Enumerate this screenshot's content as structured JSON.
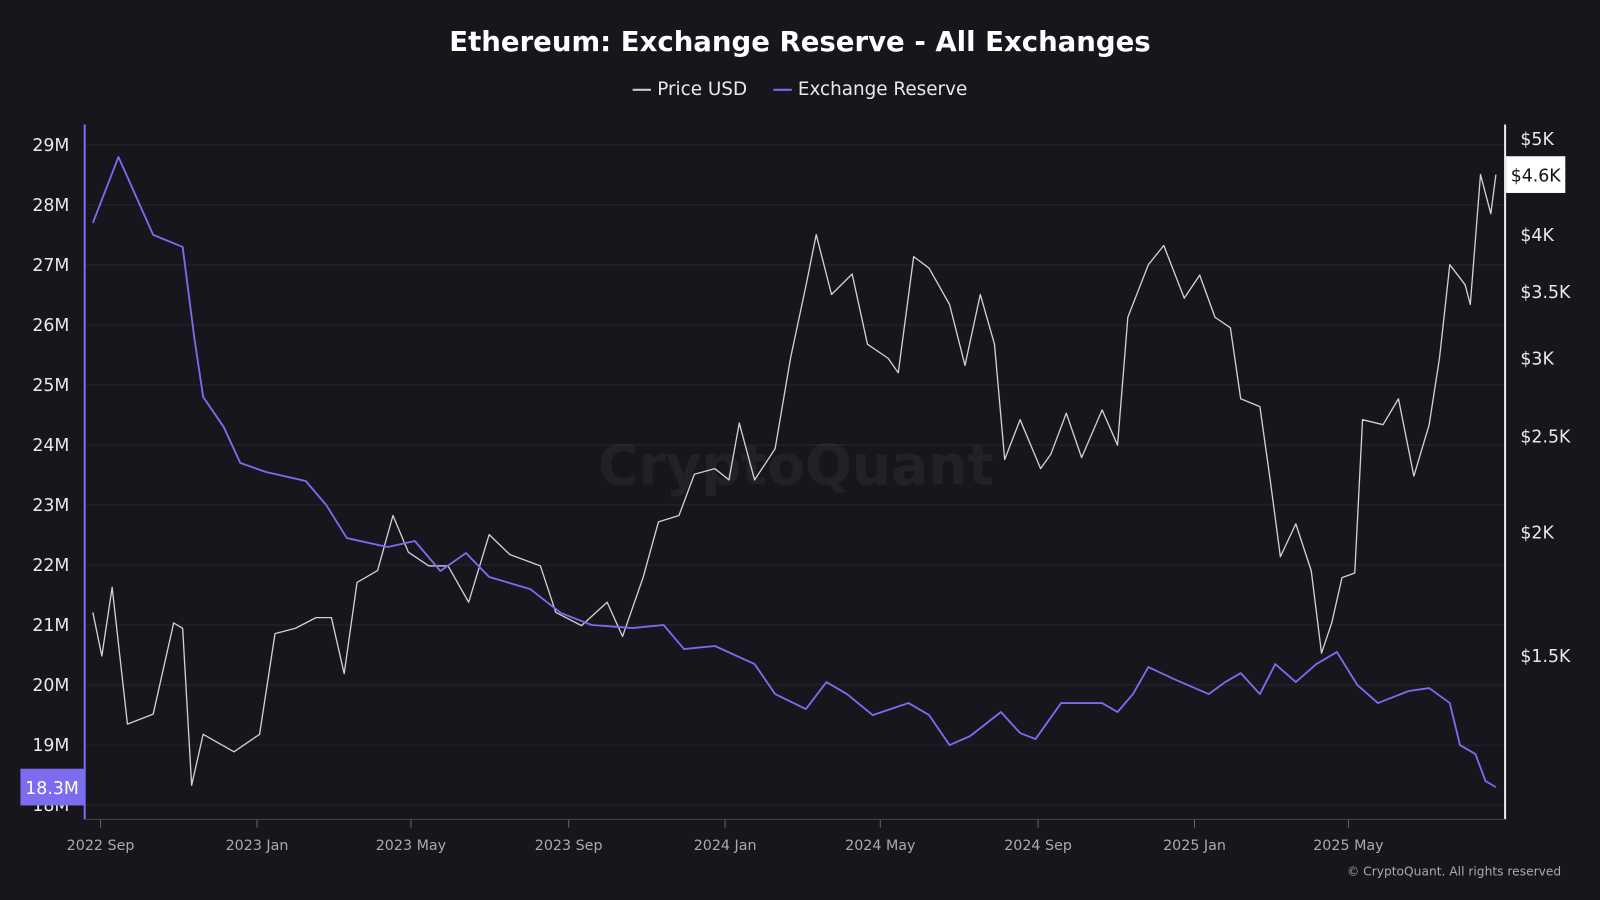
{
  "title": "Ethereum: Exchange Reserve - All Exchanges",
  "legend": [
    {
      "label": "Price USD",
      "color": "#d0d0d6"
    },
    {
      "label": "Exchange Reserve",
      "color": "#7b6cf0"
    }
  ],
  "watermark": "CryptoQuant",
  "copyright": "© CryptoQuant. All rights reserved",
  "chart_data": {
    "type": "line",
    "title": "Ethereum: Exchange Reserve - All Exchanges",
    "x_ticks": [
      "2022 Sep",
      "2023 Jan",
      "2023 May",
      "2023 Sep",
      "2024 Jan",
      "2024 May",
      "2024 Sep",
      "2025 Jan",
      "2025 May"
    ],
    "x_tick_dates": [
      "2022-09-01",
      "2023-01-01",
      "2023-05-01",
      "2023-09-01",
      "2024-01-01",
      "2024-05-01",
      "2024-09-01",
      "2025-01-01",
      "2025-05-01"
    ],
    "xlim": [
      "2022-08-26",
      "2025-08-24"
    ],
    "left_axis": {
      "ticks": [
        "29M",
        "28M",
        "27M",
        "26M",
        "25M",
        "24M",
        "23M",
        "22M",
        "21M",
        "20M",
        "19M",
        "18M"
      ],
      "tick_values": [
        29,
        28,
        27,
        26,
        25,
        24,
        23,
        22,
        21,
        20,
        19,
        18
      ],
      "ylim": [
        18,
        29
      ],
      "unit": "M",
      "current_label": "18.3M",
      "current_value": 18.3
    },
    "right_axis": {
      "scale": "log",
      "ticks": [
        "$5K",
        "$4K",
        "$3.5K",
        "$3K",
        "$2.5K",
        "$2K",
        "$1.5K"
      ],
      "tick_values": [
        5000,
        4000,
        3500,
        3000,
        2500,
        2000,
        1500
      ],
      "current_label": "$4.6K",
      "current_value": 4600
    },
    "grid": true,
    "legend_position": "top",
    "series": [
      {
        "name": "Price USD",
        "axis": "right",
        "color": "#d0d0d6",
        "points": [
          [
            "2022-08-26",
            1660
          ],
          [
            "2022-09-02",
            1500
          ],
          [
            "2022-09-10",
            1760
          ],
          [
            "2022-09-22",
            1280
          ],
          [
            "2022-10-12",
            1310
          ],
          [
            "2022-10-28",
            1620
          ],
          [
            "2022-11-04",
            1600
          ],
          [
            "2022-11-11",
            1110
          ],
          [
            "2022-11-20",
            1250
          ],
          [
            "2022-12-14",
            1200
          ],
          [
            "2023-01-03",
            1250
          ],
          [
            "2023-01-15",
            1580
          ],
          [
            "2023-01-31",
            1600
          ],
          [
            "2023-02-16",
            1640
          ],
          [
            "2023-02-28",
            1640
          ],
          [
            "2023-03-10",
            1440
          ],
          [
            "2023-03-20",
            1780
          ],
          [
            "2023-04-05",
            1830
          ],
          [
            "2023-04-17",
            2080
          ],
          [
            "2023-04-29",
            1910
          ],
          [
            "2023-05-15",
            1850
          ],
          [
            "2023-05-30",
            1850
          ],
          [
            "2023-06-15",
            1700
          ],
          [
            "2023-07-01",
            1990
          ],
          [
            "2023-07-17",
            1900
          ],
          [
            "2023-08-10",
            1850
          ],
          [
            "2023-08-22",
            1660
          ],
          [
            "2023-09-11",
            1610
          ],
          [
            "2023-10-01",
            1700
          ],
          [
            "2023-10-13",
            1570
          ],
          [
            "2023-10-29",
            1800
          ],
          [
            "2023-11-10",
            2050
          ],
          [
            "2023-11-26",
            2080
          ],
          [
            "2023-12-08",
            2290
          ],
          [
            "2023-12-24",
            2320
          ],
          [
            "2024-01-04",
            2260
          ],
          [
            "2024-01-12",
            2580
          ],
          [
            "2024-01-24",
            2260
          ],
          [
            "2024-02-09",
            2430
          ],
          [
            "2024-02-21",
            3000
          ],
          [
            "2024-03-04",
            3550
          ],
          [
            "2024-03-12",
            4000
          ],
          [
            "2024-03-24",
            3480
          ],
          [
            "2024-04-09",
            3650
          ],
          [
            "2024-04-21",
            3100
          ],
          [
            "2024-05-07",
            3000
          ],
          [
            "2024-05-15",
            2900
          ],
          [
            "2024-05-27",
            3800
          ],
          [
            "2024-06-08",
            3700
          ],
          [
            "2024-06-24",
            3400
          ],
          [
            "2024-07-06",
            2950
          ],
          [
            "2024-07-18",
            3480
          ],
          [
            "2024-07-29",
            3100
          ],
          [
            "2024-08-06",
            2370
          ],
          [
            "2024-08-18",
            2600
          ],
          [
            "2024-09-03",
            2320
          ],
          [
            "2024-09-11",
            2400
          ],
          [
            "2024-09-23",
            2640
          ],
          [
            "2024-10-05",
            2380
          ],
          [
            "2024-10-21",
            2660
          ],
          [
            "2024-11-02",
            2450
          ],
          [
            "2024-11-10",
            3300
          ],
          [
            "2024-11-26",
            3730
          ],
          [
            "2024-12-08",
            3900
          ],
          [
            "2024-12-24",
            3450
          ],
          [
            "2025-01-05",
            3640
          ],
          [
            "2025-01-17",
            3300
          ],
          [
            "2025-01-29",
            3220
          ],
          [
            "2025-02-06",
            2730
          ],
          [
            "2025-02-21",
            2680
          ],
          [
            "2025-03-01",
            2260
          ],
          [
            "2025-03-09",
            1890
          ],
          [
            "2025-03-21",
            2040
          ],
          [
            "2025-04-02",
            1830
          ],
          [
            "2025-04-10",
            1510
          ],
          [
            "2025-04-18",
            1620
          ],
          [
            "2025-04-26",
            1800
          ],
          [
            "2025-05-06",
            1820
          ],
          [
            "2025-05-12",
            2600
          ],
          [
            "2025-05-28",
            2570
          ],
          [
            "2025-06-09",
            2730
          ],
          [
            "2025-06-21",
            2280
          ],
          [
            "2025-07-03",
            2570
          ],
          [
            "2025-07-11",
            3000
          ],
          [
            "2025-07-19",
            3730
          ],
          [
            "2025-07-31",
            3560
          ],
          [
            "2025-08-04",
            3400
          ],
          [
            "2025-08-12",
            4600
          ],
          [
            "2025-08-20",
            4200
          ],
          [
            "2025-08-24",
            4600
          ]
        ]
      },
      {
        "name": "Exchange Reserve",
        "axis": "left",
        "color": "#7b6cf0",
        "points": [
          [
            "2022-08-26",
            27.7
          ],
          [
            "2022-09-15",
            28.8
          ],
          [
            "2022-10-12",
            27.5
          ],
          [
            "2022-11-04",
            27.3
          ],
          [
            "2022-11-13",
            25.8
          ],
          [
            "2022-11-20",
            24.8
          ],
          [
            "2022-12-06",
            24.3
          ],
          [
            "2022-12-19",
            23.7
          ],
          [
            "2023-01-08",
            23.55
          ],
          [
            "2023-02-08",
            23.4
          ],
          [
            "2023-02-24",
            23.0
          ],
          [
            "2023-03-12",
            22.45
          ],
          [
            "2023-04-13",
            22.3
          ],
          [
            "2023-05-04",
            22.4
          ],
          [
            "2023-05-24",
            21.9
          ],
          [
            "2023-06-13",
            22.2
          ],
          [
            "2023-07-01",
            21.8
          ],
          [
            "2023-08-02",
            21.6
          ],
          [
            "2023-08-26",
            21.2
          ],
          [
            "2023-09-19",
            21.0
          ],
          [
            "2023-10-21",
            20.95
          ],
          [
            "2023-11-14",
            21.0
          ],
          [
            "2023-11-30",
            20.6
          ],
          [
            "2023-12-24",
            20.65
          ],
          [
            "2024-01-24",
            20.35
          ],
          [
            "2024-02-09",
            19.85
          ],
          [
            "2024-03-04",
            19.6
          ],
          [
            "2024-03-20",
            20.05
          ],
          [
            "2024-04-05",
            19.85
          ],
          [
            "2024-04-25",
            19.5
          ],
          [
            "2024-05-23",
            19.7
          ],
          [
            "2024-06-08",
            19.5
          ],
          [
            "2024-06-24",
            19.0
          ],
          [
            "2024-07-10",
            19.15
          ],
          [
            "2024-08-03",
            19.55
          ],
          [
            "2024-08-18",
            19.2
          ],
          [
            "2024-08-30",
            19.1
          ],
          [
            "2024-09-19",
            19.7
          ],
          [
            "2024-10-21",
            19.7
          ],
          [
            "2024-11-02",
            19.55
          ],
          [
            "2024-11-14",
            19.85
          ],
          [
            "2024-11-26",
            20.3
          ],
          [
            "2024-12-16",
            20.1
          ],
          [
            "2025-01-12",
            19.85
          ],
          [
            "2025-01-25",
            20.05
          ],
          [
            "2025-02-06",
            20.2
          ],
          [
            "2025-02-21",
            19.85
          ],
          [
            "2025-03-05",
            20.35
          ],
          [
            "2025-03-21",
            20.05
          ],
          [
            "2025-04-06",
            20.35
          ],
          [
            "2025-04-22",
            20.55
          ],
          [
            "2025-05-08",
            20.0
          ],
          [
            "2025-05-24",
            19.7
          ],
          [
            "2025-06-17",
            19.9
          ],
          [
            "2025-07-03",
            19.95
          ],
          [
            "2025-07-19",
            19.7
          ],
          [
            "2025-07-27",
            19.0
          ],
          [
            "2025-08-08",
            18.85
          ],
          [
            "2025-08-16",
            18.4
          ],
          [
            "2025-08-24",
            18.3
          ]
        ]
      }
    ]
  }
}
